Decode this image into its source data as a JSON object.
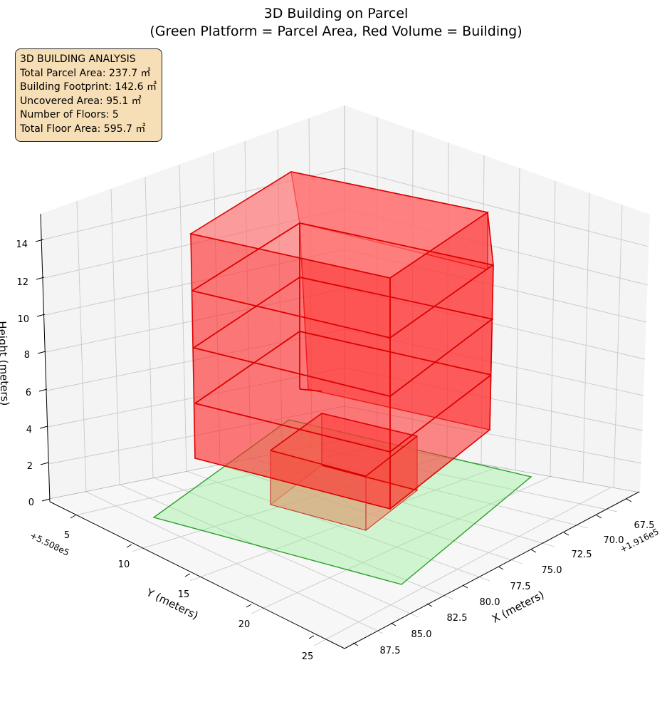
{
  "chart_data": {
    "type": "3d-polygons",
    "title_lines": [
      "3D Building on Parcel",
      "(Green Platform = Parcel Area, Red Volume = Building)"
    ],
    "axes": {
      "x": {
        "label": "X (meters)",
        "offset": "+1.916e5",
        "ticks": [
          "67.5",
          "70.0",
          "72.5",
          "75.0",
          "77.5",
          "80.0",
          "82.5",
          "85.0",
          "87.5"
        ]
      },
      "y": {
        "label": "Y (meters)",
        "offset": "+5.508e5",
        "ticks": [
          "5",
          "10",
          "15",
          "20",
          "25"
        ]
      },
      "z": {
        "label": "Height (meters)",
        "ticks": [
          "0",
          "2",
          "4",
          "6",
          "8",
          "10",
          "12",
          "14"
        ]
      }
    },
    "grid": true,
    "parcel": {
      "color": "#2ca02c",
      "fill": "#90ee90"
    },
    "building": {
      "color": "#e00000",
      "fill": "#ff0000",
      "floors": 5
    },
    "info_box": {
      "lines": [
        "3D BUILDING ANALYSIS",
        "Total Parcel Area: 237.7 ㎡",
        "Building Footprint: 142.6 ㎡",
        "Uncovered Area: 95.1 ㎡",
        "Number of Floors: 5",
        "Total Floor Area: 595.7 ㎡"
      ]
    }
  }
}
